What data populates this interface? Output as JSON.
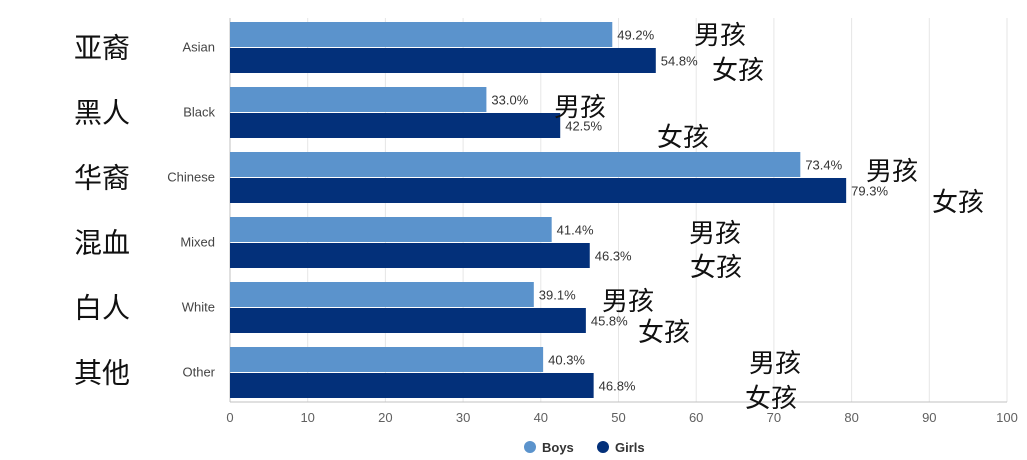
{
  "chart_data": {
    "type": "bar",
    "orientation": "horizontal",
    "categories": [
      "Asian",
      "Black",
      "Chinese",
      "Mixed",
      "White",
      "Other"
    ],
    "category_translations": [
      "亚裔",
      "黑人",
      "华裔",
      "混血",
      "白人",
      "其他"
    ],
    "series": [
      {
        "name": "Boys",
        "color": "#5b93cc",
        "values": [
          49.2,
          33.0,
          73.4,
          41.4,
          39.1,
          40.3
        ],
        "labels": [
          "49.2%",
          "33.0%",
          "73.4%",
          "41.4%",
          "39.1%",
          "40.3%"
        ]
      },
      {
        "name": "Girls",
        "color": "#03307a",
        "values": [
          54.8,
          42.5,
          79.3,
          46.3,
          45.8,
          46.8
        ],
        "labels": [
          "54.8%",
          "42.5%",
          "79.3%",
          "46.3%",
          "45.8%",
          "46.8%"
        ]
      }
    ],
    "xlim": [
      0,
      100
    ],
    "x_ticks": [
      "0",
      "10",
      "20",
      "30",
      "40",
      "50",
      "60",
      "70",
      "80",
      "90",
      "100"
    ],
    "grid": true,
    "legend_position": "bottom-center",
    "annotations": {
      "boys": "男孩",
      "girls": "女孩"
    }
  }
}
